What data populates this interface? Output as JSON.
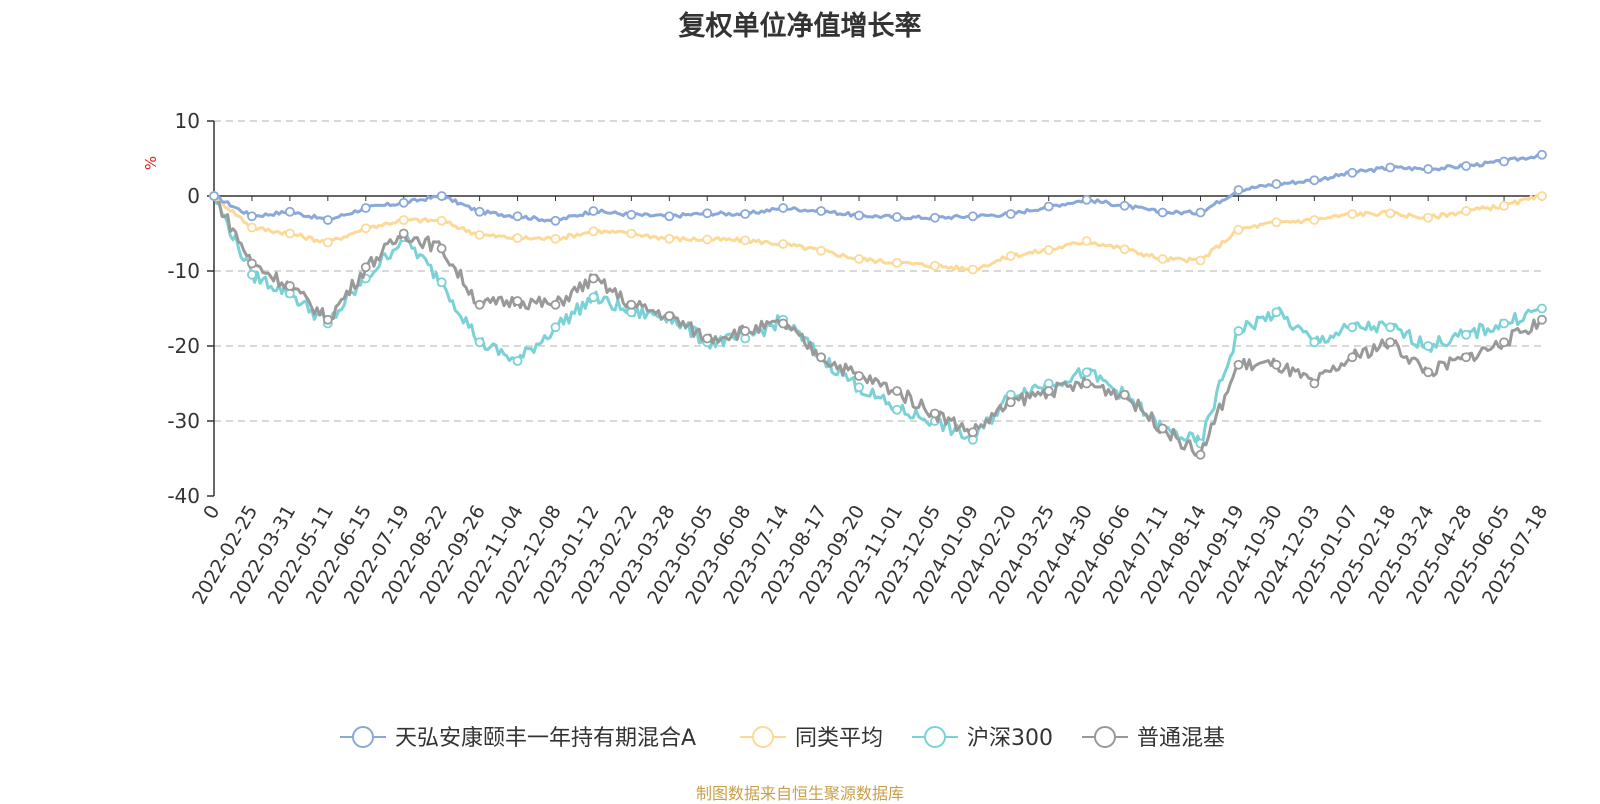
{
  "chart_data": {
    "type": "line",
    "title": "复权单位净值增长率",
    "ylabel": "%",
    "ylim": [
      -40,
      10
    ],
    "yticks": [
      10,
      0,
      -10,
      -20,
      -30,
      -40
    ],
    "x_start_label": "0",
    "x_ticks": [
      "2022-02-25",
      "2022-03-31",
      "2022-05-11",
      "2022-06-15",
      "2022-07-19",
      "2022-08-22",
      "2022-09-26",
      "2022-11-04",
      "2022-12-08",
      "2023-01-12",
      "2023-02-22",
      "2023-03-28",
      "2023-05-05",
      "2023-06-08",
      "2023-07-14",
      "2023-08-17",
      "2023-09-20",
      "2023-11-01",
      "2023-12-05",
      "2024-01-09",
      "2024-02-20",
      "2024-03-25",
      "2024-04-30",
      "2024-06-06",
      "2024-07-11",
      "2024-08-14",
      "2024-09-19",
      "2024-10-30",
      "2024-12-03",
      "2025-01-07",
      "2025-02-18",
      "2025-03-24",
      "2025-04-28",
      "2025-06-05",
      "2025-07-18"
    ],
    "grid": true,
    "legend_position": "bottom",
    "x_positions": [
      0,
      1,
      2,
      3,
      4,
      5,
      6,
      7,
      8,
      9,
      10,
      11,
      12,
      13,
      14,
      15,
      16,
      17,
      18,
      19,
      20,
      21,
      22,
      23,
      24,
      25,
      26,
      27,
      28,
      29,
      30,
      31,
      32,
      33,
      34,
      35
    ],
    "series": [
      {
        "name": "天弘安康颐丰一年持有期混合A",
        "color": "#8aa8d8",
        "values": [
          0,
          -2.7,
          -2.1,
          -3.2,
          -1.6,
          -0.9,
          0,
          -2.1,
          -2.7,
          -3.3,
          -2.0,
          -2.5,
          -2.7,
          -2.3,
          -2.4,
          -1.6,
          -2.0,
          -2.6,
          -2.8,
          -2.9,
          -2.7,
          -2.4,
          -1.4,
          -0.5,
          -1.3,
          -2.2,
          -2.2,
          0.8,
          1.6,
          2.1,
          3.1,
          3.8,
          3.6,
          4.0,
          4.6,
          5.5
        ]
      },
      {
        "name": "同类平均",
        "color": "#fcd997",
        "values": [
          0,
          -4.2,
          -5.0,
          -6.2,
          -4.3,
          -3.2,
          -3.3,
          -5.2,
          -5.6,
          -5.7,
          -4.7,
          -5.0,
          -5.7,
          -5.8,
          -5.9,
          -6.4,
          -7.3,
          -8.4,
          -8.9,
          -9.3,
          -9.8,
          -8.0,
          -7.2,
          -6.0,
          -7.1,
          -8.4,
          -8.6,
          -4.5,
          -3.5,
          -3.2,
          -2.4,
          -2.3,
          -2.9,
          -2.0,
          -1.3,
          0
        ]
      },
      {
        "name": "沪深300",
        "color": "#7ad1d6",
        "values": [
          0,
          -10.5,
          -13.0,
          -17.0,
          -11.0,
          -5.5,
          -11.5,
          -19.5,
          -22.0,
          -17.5,
          -13.5,
          -15.5,
          -16.0,
          -19.5,
          -19.0,
          -16.5,
          -21.5,
          -25.5,
          -28.5,
          -30.0,
          -32.5,
          -26.5,
          -25.0,
          -23.5,
          -26.5,
          -31.0,
          -33.0,
          -18.0,
          -15.5,
          -19.5,
          -17.5,
          -17.5,
          -20.0,
          -18.5,
          -17.0,
          -15.0
        ]
      },
      {
        "name": "普通混基",
        "color": "#999999",
        "values": [
          0,
          -9.0,
          -12.0,
          -16.5,
          -9.5,
          -5.0,
          -7.0,
          -14.5,
          -14.0,
          -14.5,
          -11.0,
          -14.5,
          -16.0,
          -19.0,
          -18.0,
          -17.0,
          -21.5,
          -24.0,
          -26.0,
          -29.0,
          -31.5,
          -27.5,
          -26.0,
          -25.0,
          -26.5,
          -31.0,
          -34.5,
          -22.5,
          -22.5,
          -25.0,
          -21.5,
          -19.5,
          -23.5,
          -21.5,
          -19.5,
          -16.5
        ]
      }
    ]
  },
  "footer_note": "制图数据来自恒生聚源数据库"
}
